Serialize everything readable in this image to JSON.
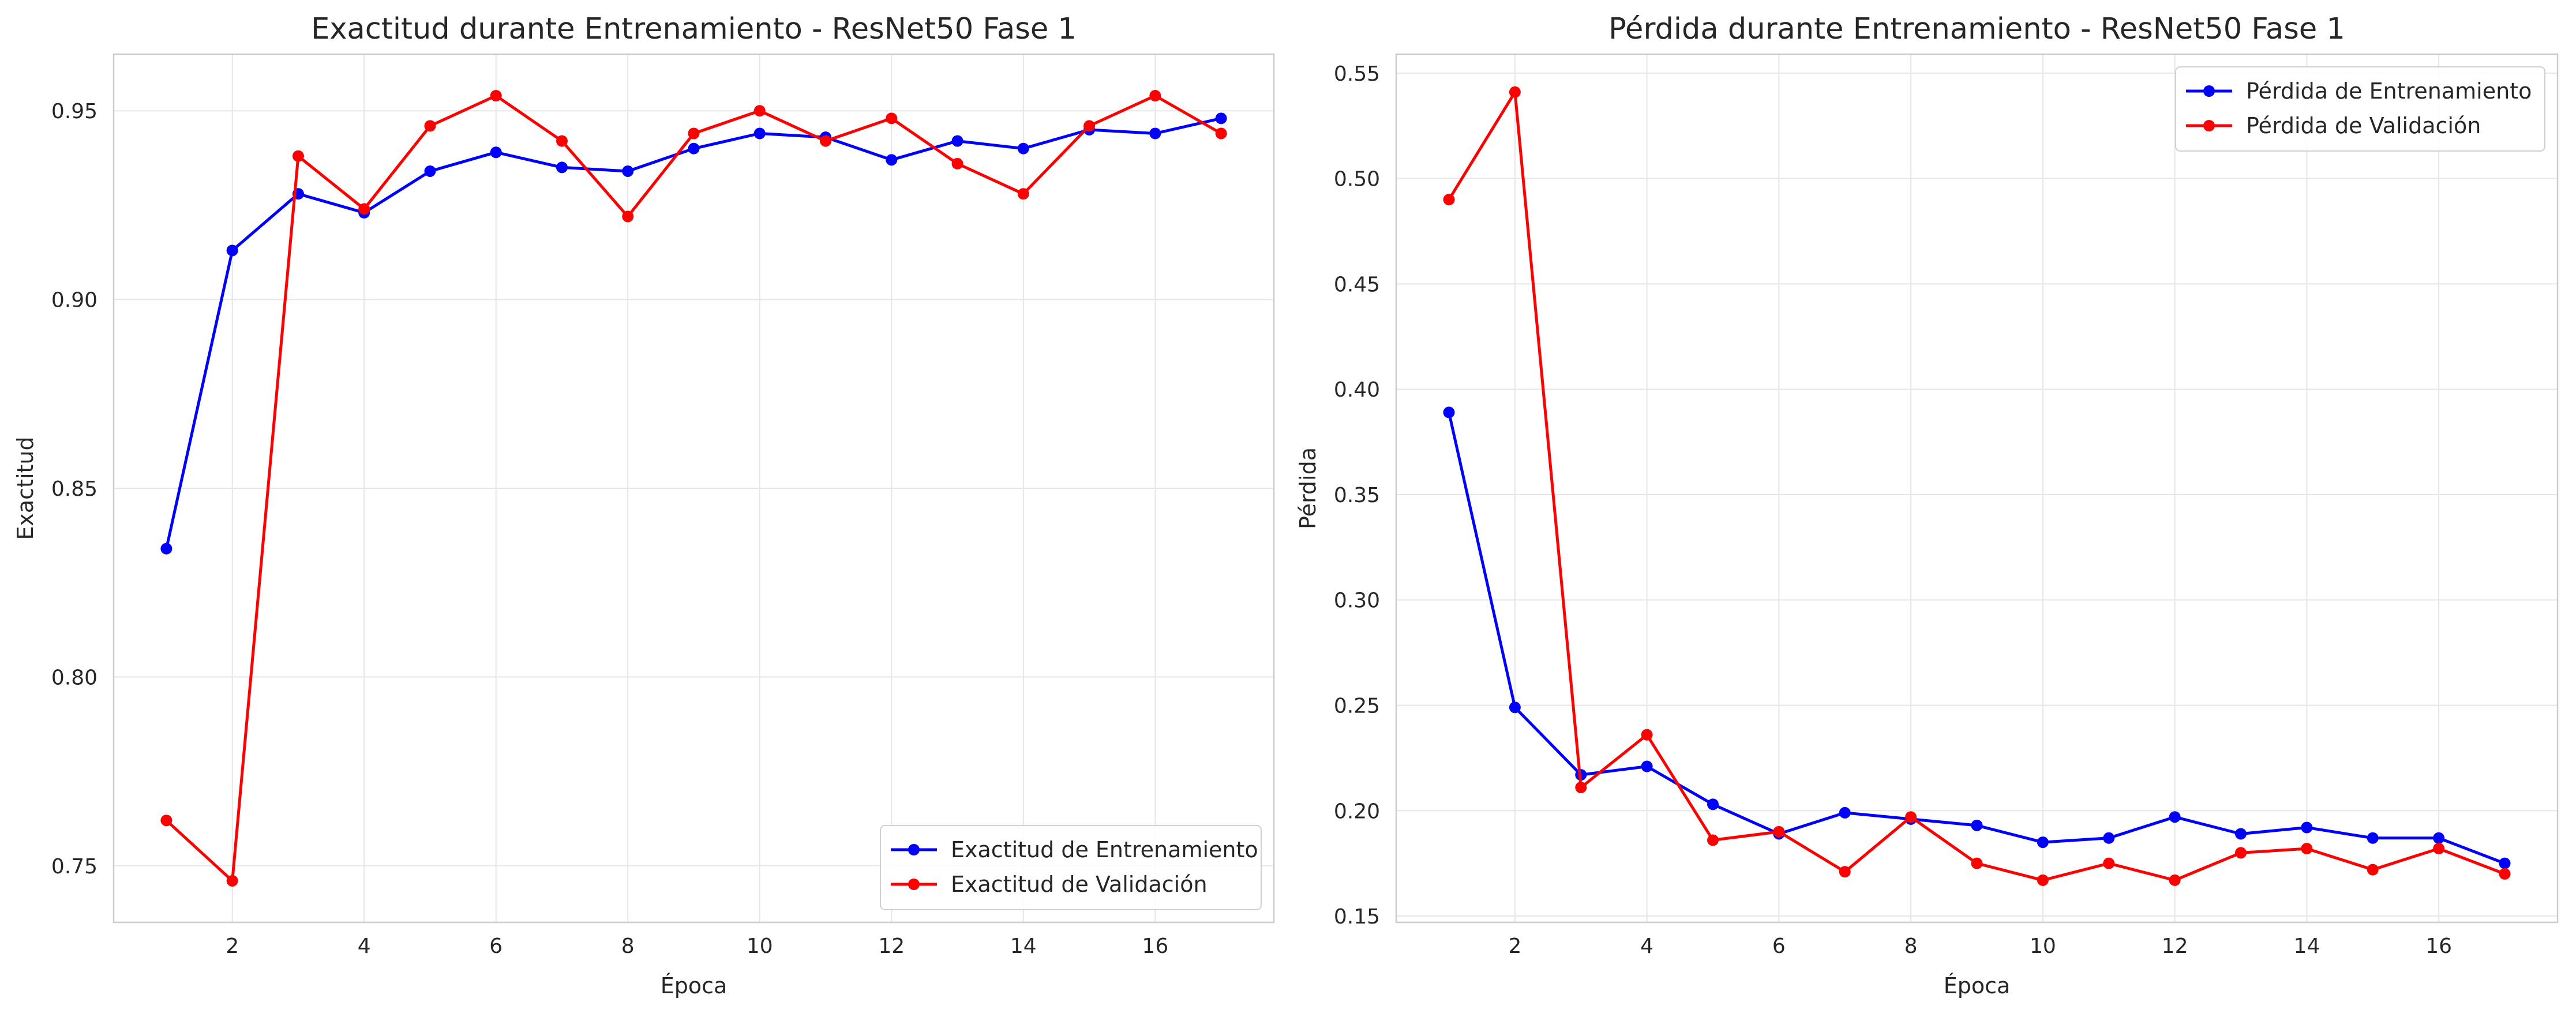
{
  "chart_data": [
    {
      "type": "line",
      "title": "Exactitud durante Entrenamiento - ResNet50 Fase 1",
      "xlabel": "Época",
      "ylabel": "Exactitud",
      "x": [
        1,
        2,
        3,
        4,
        5,
        6,
        7,
        8,
        9,
        10,
        11,
        12,
        13,
        14,
        15,
        16,
        17
      ],
      "xlim": [
        0.2,
        17.8
      ],
      "ylim": [
        0.735,
        0.965
      ],
      "xticks": [
        2,
        4,
        6,
        8,
        10,
        12,
        14,
        16
      ],
      "yticks": [
        0.75,
        0.8,
        0.85,
        0.9,
        0.95
      ],
      "yticks_decimals": 2,
      "grid": true,
      "legend_position": "lower-right",
      "series": [
        {
          "name": "Exactitud de Entrenamiento",
          "color": "#0000ff",
          "values": [
            0.834,
            0.913,
            0.928,
            0.923,
            0.934,
            0.939,
            0.935,
            0.934,
            0.94,
            0.944,
            0.943,
            0.937,
            0.942,
            0.94,
            0.945,
            0.944,
            0.948
          ]
        },
        {
          "name": "Exactitud de Validación",
          "color": "#ff0000",
          "values": [
            0.762,
            0.746,
            0.938,
            0.924,
            0.946,
            0.954,
            0.942,
            0.922,
            0.944,
            0.95,
            0.942,
            0.948,
            0.936,
            0.928,
            0.946,
            0.954,
            0.944
          ]
        }
      ]
    },
    {
      "type": "line",
      "title": "Pérdida durante Entrenamiento - ResNet50 Fase 1",
      "xlabel": "Época",
      "ylabel": "Pérdida",
      "x": [
        1,
        2,
        3,
        4,
        5,
        6,
        7,
        8,
        9,
        10,
        11,
        12,
        13,
        14,
        15,
        16,
        17
      ],
      "xlim": [
        0.2,
        17.8
      ],
      "ylim": [
        0.147,
        0.559
      ],
      "xticks": [
        2,
        4,
        6,
        8,
        10,
        12,
        14,
        16
      ],
      "yticks": [
        0.15,
        0.2,
        0.25,
        0.3,
        0.35,
        0.4,
        0.45,
        0.5,
        0.55
      ],
      "yticks_decimals": 2,
      "grid": true,
      "legend_position": "upper-right",
      "series": [
        {
          "name": "Pérdida de Entrenamiento",
          "color": "#0000ff",
          "values": [
            0.389,
            0.249,
            0.217,
            0.221,
            0.203,
            0.189,
            0.199,
            0.196,
            0.193,
            0.185,
            0.187,
            0.197,
            0.189,
            0.192,
            0.187,
            0.187,
            0.175
          ]
        },
        {
          "name": "Pérdida de Validación",
          "color": "#ff0000",
          "values": [
            0.49,
            0.541,
            0.211,
            0.236,
            0.186,
            0.19,
            0.171,
            0.197,
            0.175,
            0.167,
            0.175,
            0.167,
            0.18,
            0.182,
            0.172,
            0.182,
            0.17
          ]
        }
      ]
    }
  ]
}
